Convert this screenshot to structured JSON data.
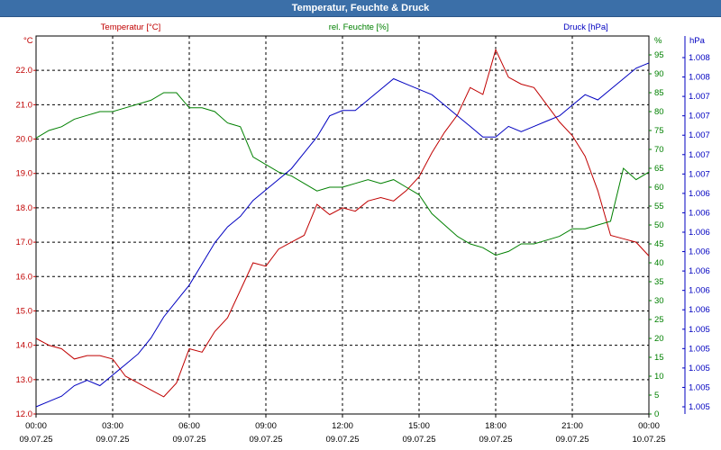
{
  "window": {
    "title": "Temperatur, Feuchte & Druck"
  },
  "chart_data": {
    "type": "line",
    "title": "Temperatur, Feuchte & Druck",
    "colors": {
      "temperature": "#c00000",
      "humidity": "#008000",
      "pressure": "#0000c0",
      "grid": "#000000"
    },
    "axes": {
      "temperature": {
        "label": "Temperatur [°C]",
        "unit": "°C",
        "ylim": [
          12.0,
          23.0
        ],
        "ticks": [
          "12.0",
          "13.0",
          "14.0",
          "15.0",
          "16.0",
          "17.0",
          "18.0",
          "19.0",
          "20.0",
          "21.0",
          "22.0"
        ]
      },
      "humidity": {
        "label": "rel. Feuchte [%]",
        "unit": "%",
        "ylim": [
          0,
          100
        ],
        "ticks": [
          "0",
          "5",
          "10",
          "15",
          "20",
          "25",
          "30",
          "35",
          "40",
          "45",
          "50",
          "55",
          "60",
          "65",
          "70",
          "75",
          "80",
          "85",
          "90",
          "95"
        ]
      },
      "pressure": {
        "label": "Druck [hPa]",
        "unit": "hPa",
        "ticks": [
          "1.005",
          "1.005",
          "1.005",
          "1.005",
          "1.005",
          "1.006",
          "1.006",
          "1.006",
          "1.006",
          "1.006",
          "1.006",
          "1.006",
          "1.007",
          "1.007",
          "1.007",
          "1.007",
          "1.007",
          "1.008",
          "1.008"
        ]
      },
      "x": {
        "ticks": [
          {
            "time": "00:00",
            "date": "09.07.25"
          },
          {
            "time": "03:00",
            "date": "09.07.25"
          },
          {
            "time": "06:00",
            "date": "09.07.25"
          },
          {
            "time": "09:00",
            "date": "09.07.25"
          },
          {
            "time": "12:00",
            "date": "09.07.25"
          },
          {
            "time": "15:00",
            "date": "09.07.25"
          },
          {
            "time": "18:00",
            "date": "09.07.25"
          },
          {
            "time": "21:00",
            "date": "09.07.25"
          },
          {
            "time": "00:00",
            "date": "10.07.25"
          }
        ],
        "xlim_hours": [
          0,
          24
        ]
      }
    },
    "series": [
      {
        "name": "Temperatur",
        "axis": "temperature",
        "x": [
          0,
          0.5,
          1,
          1.5,
          2,
          2.5,
          3,
          3.5,
          4,
          4.5,
          5,
          5.5,
          6,
          6.5,
          7,
          7.5,
          8,
          8.5,
          9,
          9.5,
          10,
          10.5,
          11,
          11.5,
          12,
          12.5,
          13,
          13.5,
          14,
          14.5,
          15,
          15.5,
          16,
          16.5,
          17,
          17.5,
          18,
          18.5,
          19,
          19.5,
          20,
          20.5,
          21,
          21.5,
          22,
          22.5,
          23,
          23.5,
          24
        ],
        "values": [
          14.2,
          14.0,
          13.9,
          13.6,
          13.7,
          13.7,
          13.6,
          13.1,
          12.9,
          12.7,
          12.5,
          12.9,
          13.9,
          13.8,
          14.4,
          14.8,
          15.6,
          16.4,
          16.3,
          16.8,
          17.0,
          17.2,
          18.1,
          17.8,
          18.0,
          17.9,
          18.2,
          18.3,
          18.2,
          18.5,
          18.9,
          19.6,
          20.2,
          20.7,
          21.5,
          21.3,
          22.6,
          21.8,
          21.6,
          21.5,
          21.0,
          20.5,
          20.1,
          19.5,
          18.5,
          17.2,
          17.1,
          17.0,
          16.6
        ]
      },
      {
        "name": "rel. Feuchte",
        "axis": "humidity",
        "x": [
          0,
          0.5,
          1,
          1.5,
          2,
          2.5,
          3,
          3.5,
          4,
          4.5,
          5,
          5.5,
          6,
          6.5,
          7,
          7.5,
          8,
          8.5,
          9,
          9.5,
          10,
          10.5,
          11,
          11.5,
          12,
          12.5,
          13,
          13.5,
          14,
          14.5,
          15,
          15.5,
          16,
          16.5,
          17,
          17.5,
          18,
          18.5,
          19,
          19.5,
          20,
          20.5,
          21,
          21.5,
          22,
          22.5,
          23,
          23.5,
          24
        ],
        "values": [
          73,
          75,
          76,
          78,
          79,
          80,
          80,
          81,
          82,
          83,
          85,
          85,
          81,
          81,
          80,
          77,
          76,
          68,
          66,
          64,
          63,
          61,
          59,
          60,
          60,
          61,
          62,
          61,
          62,
          60,
          58,
          53,
          50,
          47,
          45,
          44,
          42,
          43,
          45,
          45,
          46,
          47,
          49,
          49,
          50,
          51,
          65,
          62,
          64
        ]
      },
      {
        "name": "Druck",
        "axis": "pressure",
        "ylim": [
          1.00485,
          1.00815
        ],
        "x": [
          0,
          0.5,
          1,
          1.5,
          2,
          2.5,
          3,
          3.5,
          4,
          4.5,
          5,
          5.5,
          6,
          6.5,
          7,
          7.5,
          8,
          8.5,
          9,
          9.5,
          10,
          10.5,
          11,
          11.5,
          12,
          12.5,
          13,
          13.5,
          14,
          14.5,
          15,
          15.5,
          16,
          16.5,
          17,
          17.5,
          18,
          18.5,
          19,
          19.5,
          20,
          20.5,
          21,
          21.5,
          22,
          22.5,
          23,
          23.5,
          24
        ],
        "values": [
          1.00485,
          1.0049,
          1.00495,
          1.00505,
          1.0051,
          1.00505,
          1.00515,
          1.00525,
          1.00535,
          1.0055,
          1.0057,
          1.00585,
          1.006,
          1.0062,
          1.0064,
          1.00655,
          1.00665,
          1.0068,
          1.0069,
          1.007,
          1.0071,
          1.00725,
          1.0074,
          1.0076,
          1.00765,
          1.00765,
          1.00775,
          1.00785,
          1.00795,
          1.0079,
          1.00785,
          1.0078,
          1.0077,
          1.0076,
          1.0075,
          1.0074,
          1.0074,
          1.0075,
          1.00745,
          1.0075,
          1.00755,
          1.0076,
          1.0077,
          1.0078,
          1.00775,
          1.00785,
          1.00795,
          1.00805,
          1.0081
        ]
      }
    ]
  }
}
